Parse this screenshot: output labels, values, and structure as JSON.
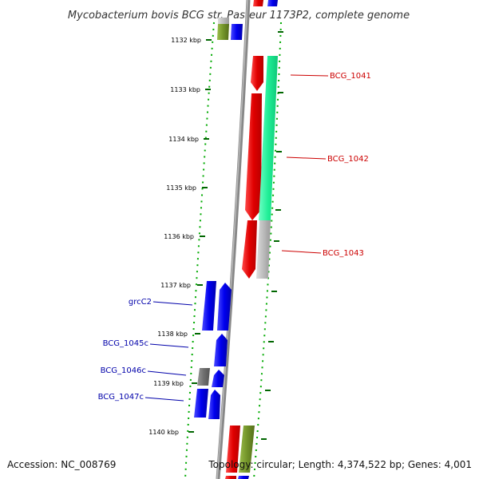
{
  "title": "Mycobacterium bovis BCG str. Pasteur 1173P2, complete genome",
  "footer": {
    "accession": "Accession: NC_008769",
    "topology": "Topology: circular; Length: 4,374,522 bp; Genes: 4,001"
  },
  "colors": {
    "forward_label": "#cc0000",
    "reverse_label": "#0000aa",
    "tick": "#006600",
    "backbone": "#888888"
  },
  "ticks": [
    "1132 kbp",
    "1133 kbp",
    "1134 kbp",
    "1135 kbp",
    "1136 kbp",
    "1137 kbp",
    "1138 kbp",
    "1139 kbp",
    "1140 kbp"
  ],
  "gene_labels": [
    {
      "name": "BCG_1041",
      "strand": "forward"
    },
    {
      "name": "BCG_1042",
      "strand": "forward"
    },
    {
      "name": "BCG_1043",
      "strand": "forward"
    },
    {
      "name": "grcC2",
      "strand": "reverse"
    },
    {
      "name": "BCG_1045c",
      "strand": "reverse"
    },
    {
      "name": "BCG_1046c",
      "strand": "reverse"
    },
    {
      "name": "BCG_1047c",
      "strand": "reverse"
    }
  ]
}
